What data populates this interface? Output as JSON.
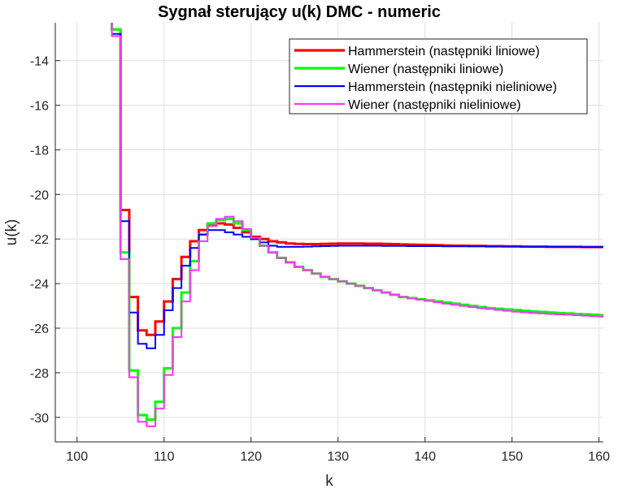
{
  "chart_data": {
    "type": "line",
    "title": "Sygnał sterujący u(k)    DMC - numeric",
    "xlabel": "k",
    "ylabel": "u(k)",
    "xlim": [
      97.5,
      160.5
    ],
    "ylim": [
      -31.1,
      -12.3
    ],
    "xticks": [
      100,
      110,
      120,
      130,
      140,
      150,
      160
    ],
    "yticks": [
      -30,
      -28,
      -26,
      -24,
      -22,
      -20,
      -18,
      -16,
      -14
    ],
    "grid": true,
    "step": true,
    "legend_position": "top-right",
    "x": [
      104,
      105,
      106,
      107,
      108,
      109,
      110,
      111,
      112,
      113,
      114,
      115,
      116,
      117,
      118,
      119,
      120,
      121,
      122,
      123,
      124,
      125,
      126,
      127,
      128,
      129,
      130,
      131,
      132,
      133,
      134,
      135,
      136,
      137,
      138,
      139,
      140,
      141,
      142,
      143,
      144,
      145,
      146,
      147,
      148,
      149,
      150,
      151,
      152,
      153,
      154,
      155,
      156,
      157,
      158,
      159,
      160,
      161
    ],
    "series": [
      {
        "name": "Hammerstein (następniki liniowe)",
        "color": "#ff0000",
        "width": 3,
        "values": [
          -12.6,
          -20.7,
          -24.6,
          -26.1,
          -26.3,
          -25.7,
          -24.8,
          -23.8,
          -22.8,
          -22.1,
          -21.6,
          -21.4,
          -21.3,
          -21.35,
          -21.5,
          -21.7,
          -21.9,
          -22.0,
          -22.1,
          -22.15,
          -22.2,
          -22.22,
          -22.23,
          -22.23,
          -22.22,
          -22.21,
          -22.2,
          -22.2,
          -22.2,
          -22.21,
          -22.21,
          -22.22,
          -22.23,
          -22.24,
          -22.25,
          -22.26,
          -22.27,
          -22.28,
          -22.29,
          -22.3,
          -22.3,
          -22.31,
          -22.31,
          -22.32,
          -22.32,
          -22.33,
          -22.33,
          -22.34,
          -22.34,
          -22.34,
          -22.35,
          -22.35,
          -22.35,
          -22.35,
          -22.36,
          -22.36,
          -22.36,
          -22.36
        ]
      },
      {
        "name": "Wiener (następniki liniowe)",
        "color": "#00ff00",
        "width": 3,
        "values": [
          -12.6,
          -22.6,
          -27.9,
          -29.9,
          -30.1,
          -29.3,
          -27.8,
          -26.0,
          -24.4,
          -23.0,
          -21.8,
          -21.3,
          -21.15,
          -21.1,
          -21.3,
          -21.6,
          -22.0,
          -22.3,
          -22.6,
          -22.85,
          -23.05,
          -23.25,
          -23.4,
          -23.55,
          -23.7,
          -23.8,
          -23.9,
          -24.0,
          -24.1,
          -24.2,
          -24.3,
          -24.4,
          -24.5,
          -24.6,
          -24.65,
          -24.7,
          -24.75,
          -24.8,
          -24.85,
          -24.9,
          -24.95,
          -25.0,
          -25.05,
          -25.1,
          -25.13,
          -25.16,
          -25.19,
          -25.22,
          -25.25,
          -25.27,
          -25.3,
          -25.32,
          -25.34,
          -25.36,
          -25.38,
          -25.4,
          -25.42,
          -25.44
        ]
      },
      {
        "name": "Hammerstein (następniki nieliniowe)",
        "color": "#0000ff",
        "width": 2,
        "values": [
          -12.8,
          -21.2,
          -25.3,
          -26.7,
          -26.9,
          -26.3,
          -25.2,
          -24.2,
          -23.2,
          -22.4,
          -21.8,
          -21.6,
          -21.6,
          -21.7,
          -21.8,
          -21.9,
          -22.0,
          -22.15,
          -22.3,
          -22.35,
          -22.35,
          -22.35,
          -22.34,
          -22.33,
          -22.32,
          -22.31,
          -22.3,
          -22.3,
          -22.3,
          -22.3,
          -22.3,
          -22.31,
          -22.31,
          -22.31,
          -22.32,
          -22.32,
          -22.32,
          -22.32,
          -22.33,
          -22.33,
          -22.33,
          -22.33,
          -22.33,
          -22.34,
          -22.34,
          -22.34,
          -22.34,
          -22.34,
          -22.35,
          -22.35,
          -22.35,
          -22.35,
          -22.35,
          -22.35,
          -22.36,
          -22.36,
          -22.36,
          -22.36
        ]
      },
      {
        "name": "Wiener (następniki nieliniowe)",
        "color": "#ff33ff",
        "width": 2,
        "values": [
          -12.9,
          -22.9,
          -28.2,
          -30.2,
          -30.4,
          -29.6,
          -28.1,
          -26.4,
          -24.8,
          -23.4,
          -22.1,
          -21.4,
          -21.1,
          -21.0,
          -21.2,
          -21.55,
          -21.95,
          -22.3,
          -22.6,
          -22.85,
          -23.05,
          -23.25,
          -23.4,
          -23.55,
          -23.7,
          -23.8,
          -23.9,
          -24.0,
          -24.1,
          -24.2,
          -24.3,
          -24.4,
          -24.5,
          -24.6,
          -24.66,
          -24.72,
          -24.78,
          -24.84,
          -24.9,
          -24.95,
          -25.0,
          -25.05,
          -25.1,
          -25.14,
          -25.18,
          -25.22,
          -25.26,
          -25.29,
          -25.32,
          -25.34,
          -25.36,
          -25.38,
          -25.4,
          -25.42,
          -25.44,
          -25.46,
          -25.48,
          -25.5
        ]
      }
    ]
  }
}
